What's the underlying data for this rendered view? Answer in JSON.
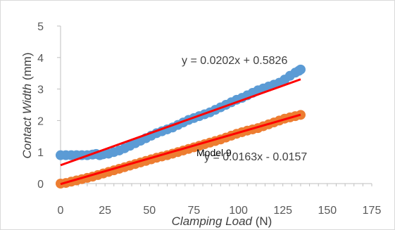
{
  "chart_data": {
    "type": "scatter",
    "title": "",
    "xlabel": "Clamping Load",
    "xlabel_unit": " (N)",
    "ylabel": "Contact Width",
    "ylabel_unit": " (mm)",
    "xlim": [
      0,
      175
    ],
    "ylim": [
      0,
      5
    ],
    "x_ticks": [
      "0",
      "25",
      "50",
      "75",
      "100",
      "125",
      "150",
      "175"
    ],
    "y_ticks": [
      "0",
      "1",
      "2",
      "3",
      "4",
      "5"
    ],
    "grid": false,
    "legend": "none",
    "series": [
      {
        "color": "#5b9bd5",
        "points": [
          [
            0,
            0.9
          ],
          [
            3,
            0.9
          ],
          [
            6,
            0.9
          ],
          [
            9,
            0.9
          ],
          [
            12,
            0.9
          ],
          [
            15,
            0.9
          ],
          [
            18,
            0.92
          ],
          [
            20,
            0.94
          ],
          [
            22,
            0.9
          ],
          [
            24,
            0.93
          ],
          [
            27,
            0.95
          ],
          [
            30,
            1.0
          ],
          [
            33,
            1.05
          ],
          [
            36,
            1.12
          ],
          [
            39,
            1.2
          ],
          [
            42,
            1.28
          ],
          [
            45,
            1.36
          ],
          [
            48,
            1.44
          ],
          [
            51,
            1.52
          ],
          [
            54,
            1.6
          ],
          [
            57,
            1.66
          ],
          [
            60,
            1.72
          ],
          [
            63,
            1.78
          ],
          [
            66,
            1.86
          ],
          [
            69,
            1.94
          ],
          [
            72,
            2.02
          ],
          [
            75,
            2.08
          ],
          [
            78,
            2.14
          ],
          [
            81,
            2.2
          ],
          [
            84,
            2.26
          ],
          [
            87,
            2.34
          ],
          [
            90,
            2.42
          ],
          [
            93,
            2.5
          ],
          [
            96,
            2.58
          ],
          [
            99,
            2.66
          ],
          [
            102,
            2.72
          ],
          [
            105,
            2.8
          ],
          [
            108,
            2.88
          ],
          [
            111,
            2.96
          ],
          [
            114,
            3.02
          ],
          [
            117,
            3.08
          ],
          [
            120,
            3.14
          ],
          [
            123,
            3.2
          ],
          [
            126,
            3.3
          ],
          [
            129,
            3.42
          ],
          [
            132,
            3.52
          ],
          [
            134,
            3.58
          ],
          [
            135,
            3.62
          ]
        ],
        "trendline": {
          "slope": 0.0202,
          "intercept": 0.5826,
          "x_range": [
            0,
            135
          ],
          "color": "#ff0000",
          "equation": "y = 0.0202x + 0.5826"
        }
      },
      {
        "color": "#ed7d31",
        "points": [
          [
            0,
            0.0
          ],
          [
            3,
            0.02
          ],
          [
            6,
            0.06
          ],
          [
            9,
            0.1
          ],
          [
            12,
            0.14
          ],
          [
            15,
            0.18
          ],
          [
            18,
            0.22
          ],
          [
            21,
            0.27
          ],
          [
            24,
            0.32
          ],
          [
            27,
            0.37
          ],
          [
            30,
            0.42
          ],
          [
            33,
            0.47
          ],
          [
            36,
            0.52
          ],
          [
            39,
            0.57
          ],
          [
            42,
            0.62
          ],
          [
            45,
            0.67
          ],
          [
            48,
            0.72
          ],
          [
            51,
            0.77
          ],
          [
            54,
            0.82
          ],
          [
            57,
            0.86
          ],
          [
            60,
            0.9
          ],
          [
            63,
            0.95
          ],
          [
            66,
            1.0
          ],
          [
            69,
            1.05
          ],
          [
            72,
            1.1
          ],
          [
            75,
            1.15
          ],
          [
            78,
            1.2
          ],
          [
            81,
            1.25
          ],
          [
            84,
            1.3
          ],
          [
            87,
            1.35
          ],
          [
            90,
            1.4
          ],
          [
            93,
            1.46
          ],
          [
            96,
            1.52
          ],
          [
            99,
            1.58
          ],
          [
            102,
            1.63
          ],
          [
            105,
            1.68
          ],
          [
            108,
            1.72
          ],
          [
            111,
            1.76
          ],
          [
            114,
            1.82
          ],
          [
            117,
            1.88
          ],
          [
            120,
            1.94
          ],
          [
            123,
            2.0
          ],
          [
            126,
            2.06
          ],
          [
            129,
            2.1
          ],
          [
            132,
            2.14
          ],
          [
            135,
            2.18
          ]
        ],
        "trendline": {
          "slope": 0.0163,
          "intercept": -0.0157,
          "x_range": [
            0,
            135
          ],
          "color": "#ff0000",
          "equation": "y = 0.0163x - 0.0157"
        }
      }
    ],
    "annotations": [
      "Model 9"
    ]
  }
}
